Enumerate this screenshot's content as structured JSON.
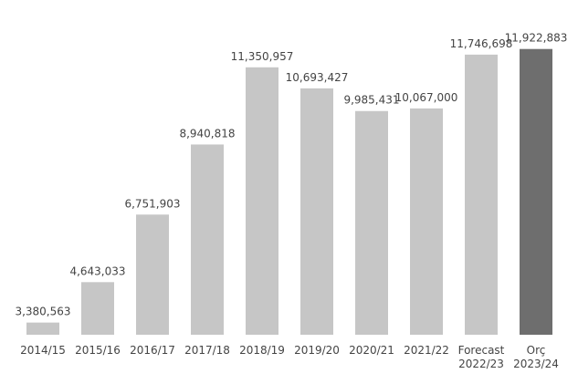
{
  "chart_data": {
    "type": "bar",
    "categories": [
      "2014/15",
      "2015/16",
      "2016/17",
      "2017/18",
      "2018/19",
      "2019/20",
      "2020/21",
      "2021/22",
      "Forecast 2022/23",
      "Orç 2023/24"
    ],
    "values": [
      3380563,
      4643033,
      6751903,
      8940818,
      11350957,
      10693427,
      9985431,
      10067000,
      11746698,
      11922883
    ],
    "value_labels": [
      "3,380,563",
      "4,643,033",
      "6,751,903",
      "8,940,818",
      "11,350,957",
      "10,693,427",
      "9,985,431",
      "10,067,000",
      "11,746,698",
      "11,922,883"
    ],
    "colors": [
      "#c6c6c6",
      "#c6c6c6",
      "#c6c6c6",
      "#c6c6c6",
      "#c6c6c6",
      "#c6c6c6",
      "#c6c6c6",
      "#c6c6c6",
      "#c6c6c6",
      "#6e6e6e"
    ],
    "ylim": [
      3000000,
      12000000
    ]
  }
}
